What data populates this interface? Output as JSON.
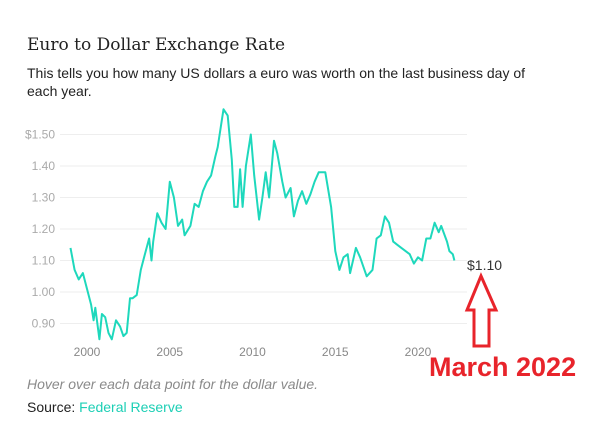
{
  "header": {
    "title": "Euro to Dollar Exchange Rate",
    "subtitle": "This tells you how many US dollars a euro was worth on the last business day of each year."
  },
  "footer": {
    "hover_note": "Hover over each data point for the dollar value.",
    "source_label": "Source:",
    "source_link": "Federal Reserve"
  },
  "annotation": {
    "label": "March 2022",
    "arrow_color": "#e8242b",
    "icon": "arrow-up-outline"
  },
  "chart_data": {
    "type": "line",
    "title": "",
    "xlabel": "",
    "ylabel": "",
    "xlim": [
      1998.6,
      2023
    ],
    "ylim": [
      0.84,
      1.6
    ],
    "grid": true,
    "color": "#1ed8bc",
    "y_ticks": [
      0.9,
      1.0,
      1.1,
      1.2,
      1.3,
      1.4,
      1.5
    ],
    "y_tick_labels": [
      "0.90",
      "1.00",
      "1.10",
      "1.20",
      "1.30",
      "1.40",
      "$1.50"
    ],
    "x_ticks": [
      2000,
      2005,
      2010,
      2015,
      2020
    ],
    "x_tick_labels": [
      "2000",
      "2005",
      "2010",
      "2015",
      "2020"
    ],
    "end_label": "$1.10",
    "x": [
      1999.0,
      1999.25,
      1999.5,
      1999.75,
      2000.0,
      2000.25,
      2000.4,
      2000.5,
      2000.75,
      2000.9,
      2001.1,
      2001.3,
      2001.5,
      2001.75,
      2002.0,
      2002.2,
      2002.4,
      2002.6,
      2002.75,
      2003.0,
      2003.25,
      2003.5,
      2003.75,
      2003.9,
      2004.0,
      2004.25,
      2004.5,
      2004.75,
      2005.0,
      2005.25,
      2005.5,
      2005.75,
      2005.9,
      2006.25,
      2006.5,
      2006.75,
      2007.0,
      2007.25,
      2007.5,
      2007.75,
      2007.9,
      2008.25,
      2008.5,
      2008.75,
      2008.9,
      2009.1,
      2009.25,
      2009.4,
      2009.6,
      2009.9,
      2010.1,
      2010.4,
      2010.6,
      2010.8,
      2011.0,
      2011.3,
      2011.5,
      2011.8,
      2012.0,
      2012.3,
      2012.5,
      2012.75,
      2013.0,
      2013.25,
      2013.5,
      2013.75,
      2014.0,
      2014.4,
      2014.75,
      2015.0,
      2015.25,
      2015.5,
      2015.75,
      2015.9,
      2016.25,
      2016.5,
      2016.9,
      2017.25,
      2017.5,
      2017.75,
      2018.0,
      2018.25,
      2018.5,
      2018.75,
      2019.0,
      2019.5,
      2019.75,
      2020.0,
      2020.25,
      2020.5,
      2020.75,
      2021.0,
      2021.25,
      2021.4,
      2021.75,
      2021.9,
      2022.1,
      2022.2
    ],
    "y": [
      1.14,
      1.07,
      1.04,
      1.06,
      1.01,
      0.96,
      0.91,
      0.95,
      0.85,
      0.93,
      0.92,
      0.87,
      0.85,
      0.91,
      0.89,
      0.86,
      0.87,
      0.98,
      0.98,
      0.99,
      1.07,
      1.12,
      1.17,
      1.1,
      1.16,
      1.25,
      1.22,
      1.2,
      1.35,
      1.3,
      1.21,
      1.23,
      1.18,
      1.21,
      1.28,
      1.27,
      1.32,
      1.35,
      1.37,
      1.43,
      1.46,
      1.58,
      1.56,
      1.42,
      1.27,
      1.27,
      1.39,
      1.27,
      1.4,
      1.5,
      1.37,
      1.23,
      1.3,
      1.38,
      1.3,
      1.48,
      1.44,
      1.35,
      1.3,
      1.33,
      1.24,
      1.29,
      1.32,
      1.28,
      1.31,
      1.35,
      1.38,
      1.38,
      1.27,
      1.13,
      1.07,
      1.11,
      1.12,
      1.06,
      1.14,
      1.11,
      1.05,
      1.07,
      1.17,
      1.18,
      1.24,
      1.22,
      1.16,
      1.15,
      1.14,
      1.12,
      1.09,
      1.11,
      1.1,
      1.17,
      1.17,
      1.22,
      1.19,
      1.21,
      1.16,
      1.13,
      1.12,
      1.1
    ]
  }
}
